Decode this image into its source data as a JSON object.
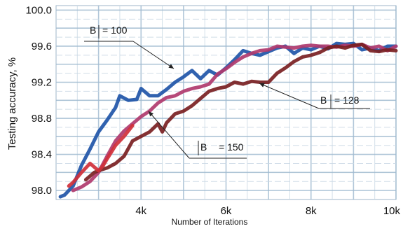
{
  "chart_data": {
    "type": "line",
    "xlabel": "Number of Iterations",
    "ylabel": "Testing accuracy, %",
    "xlim": [
      2000,
      10000
    ],
    "ylim": [
      97.9,
      100.05
    ],
    "x_ticks": [
      4000,
      6000,
      8000,
      10000
    ],
    "x_tick_labels": [
      "4k",
      "6k",
      "8k",
      "10k"
    ],
    "y_ticks": [
      98.0,
      98.4,
      98.8,
      99.2,
      99.6,
      100.0
    ],
    "y_tick_labels": [
      "98.0",
      "98.4",
      "98.8",
      "99.2",
      "99.6",
      "100.0"
    ],
    "grid": true,
    "series": [
      {
        "name": "|B| = 100",
        "color": "#1f55a8",
        "x": [
          2100,
          2200,
          2400,
          2600,
          2800,
          3000,
          3200,
          3400,
          3500,
          3700,
          3900,
          4000,
          4200,
          4400,
          4600,
          4800,
          5000,
          5200,
          5400,
          5600,
          5800,
          6000,
          6200,
          6400,
          6600,
          6800,
          7000,
          7200,
          7400,
          7600,
          7800,
          8000,
          8200,
          8400,
          8600,
          8800,
          9000,
          9200,
          9400,
          9600,
          9800,
          10000
        ],
        "y": [
          97.93,
          97.95,
          98.05,
          98.28,
          98.46,
          98.65,
          98.78,
          98.92,
          99.05,
          99.0,
          99.01,
          99.13,
          99.05,
          99.05,
          99.12,
          99.2,
          99.26,
          99.33,
          99.24,
          99.33,
          99.28,
          99.36,
          99.45,
          99.55,
          99.52,
          99.5,
          99.54,
          99.58,
          99.6,
          99.52,
          99.58,
          99.56,
          99.6,
          99.57,
          99.63,
          99.62,
          99.63,
          99.56,
          99.58,
          99.55,
          99.6,
          99.6
        ]
      },
      {
        "name": "",
        "color": "#b03a6e",
        "x": [
          2400,
          2600,
          2800,
          3000,
          3200,
          3400,
          3600,
          3800,
          4000,
          4200,
          4400,
          4600,
          4800,
          5000,
          5200,
          5400,
          5600,
          5800,
          6000,
          6200,
          6400,
          6600,
          6800,
          7000,
          7200,
          7400,
          7600,
          7800,
          8000,
          8200,
          8400,
          8600,
          8800,
          9000,
          9200,
          9400,
          9600,
          9800,
          10000
        ],
        "y": [
          98.0,
          98.04,
          98.1,
          98.2,
          98.38,
          98.55,
          98.66,
          98.74,
          98.82,
          98.88,
          98.97,
          99.03,
          99.05,
          99.1,
          99.13,
          99.15,
          99.18,
          99.29,
          99.35,
          99.42,
          99.48,
          99.52,
          99.55,
          99.56,
          99.6,
          99.59,
          99.58,
          99.6,
          99.61,
          99.6,
          99.6,
          99.59,
          99.61,
          99.6,
          99.62,
          99.58,
          99.6,
          99.55,
          99.6
        ]
      },
      {
        "name": "|B| = 128",
        "color": "#7a1f22",
        "x": [
          2700,
          2800,
          2900,
          3000,
          3200,
          3400,
          3600,
          3800,
          4000,
          4200,
          4400,
          4500,
          4600,
          4800,
          5000,
          5200,
          5400,
          5600,
          5800,
          6000,
          6200,
          6400,
          6600,
          6800,
          7000,
          7200,
          7400,
          7600,
          7800,
          8000,
          8200,
          8400,
          8600,
          8800,
          9000,
          9200,
          9400,
          9600,
          9800,
          10000
        ],
        "y": [
          98.12,
          98.16,
          98.2,
          98.22,
          98.25,
          98.3,
          98.38,
          98.55,
          98.6,
          98.65,
          98.74,
          98.65,
          98.75,
          98.85,
          98.88,
          98.94,
          99.02,
          99.1,
          99.13,
          99.15,
          99.2,
          99.18,
          99.21,
          99.2,
          99.2,
          99.3,
          99.36,
          99.43,
          99.48,
          99.5,
          99.53,
          99.58,
          99.6,
          99.58,
          99.61,
          99.62,
          99.55,
          99.54,
          99.56,
          99.55
        ]
      },
      {
        "name": "|B = 150",
        "color": "#d0303a",
        "x": [
          2300,
          2400,
          2600,
          2800,
          3000,
          3100,
          3200,
          3400,
          3600,
          3800
        ],
        "y": [
          98.05,
          98.09,
          98.2,
          98.3,
          98.22,
          98.27,
          98.35,
          98.5,
          98.6,
          98.72
        ]
      }
    ],
    "annotations": [
      {
        "text": "B",
        "bar": true,
        "text2": "= 100"
      },
      {
        "text": "B",
        "bar": true,
        "text2": "= 128"
      },
      {
        "text": "B",
        "bar": true,
        "text2": "= 150"
      }
    ]
  }
}
